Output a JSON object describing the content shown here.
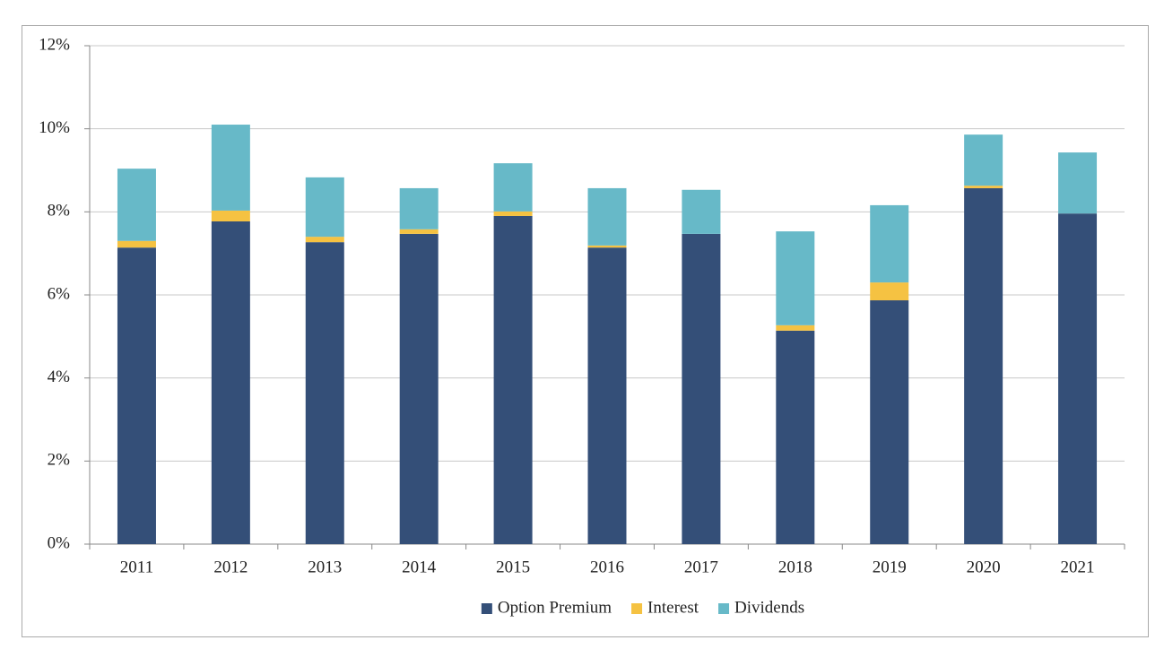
{
  "chart_data": {
    "type": "stacked-bar",
    "categories": [
      "2011",
      "2012",
      "2013",
      "2014",
      "2015",
      "2016",
      "2017",
      "2018",
      "2019",
      "2020",
      "2021"
    ],
    "series": [
      {
        "name": "Option Premium",
        "color": "#344f78",
        "values": [
          7.14,
          7.77,
          7.27,
          7.47,
          7.9,
          7.14,
          7.47,
          5.14,
          5.87,
          8.57,
          7.96
        ]
      },
      {
        "name": "Interest",
        "color": "#f5c242",
        "values": [
          0.16,
          0.26,
          0.13,
          0.11,
          0.11,
          0.05,
          0,
          0.13,
          0.43,
          0.06,
          0
        ]
      },
      {
        "name": "Dividends",
        "color": "#67b9c8",
        "values": [
          1.74,
          2.07,
          1.43,
          0.99,
          1.16,
          1.38,
          1.06,
          2.26,
          1.86,
          1.23,
          1.47
        ]
      }
    ],
    "ylim": [
      0,
      12
    ],
    "yticks": [
      {
        "value": 0,
        "label": "0%"
      },
      {
        "value": 2,
        "label": "2%"
      },
      {
        "value": 4,
        "label": "4%"
      },
      {
        "value": 6,
        "label": "6%"
      },
      {
        "value": 8,
        "label": "8%"
      },
      {
        "value": 10,
        "label": "10%"
      },
      {
        "value": 12,
        "label": "12%"
      }
    ],
    "grid": true,
    "legend": "bottom"
  }
}
